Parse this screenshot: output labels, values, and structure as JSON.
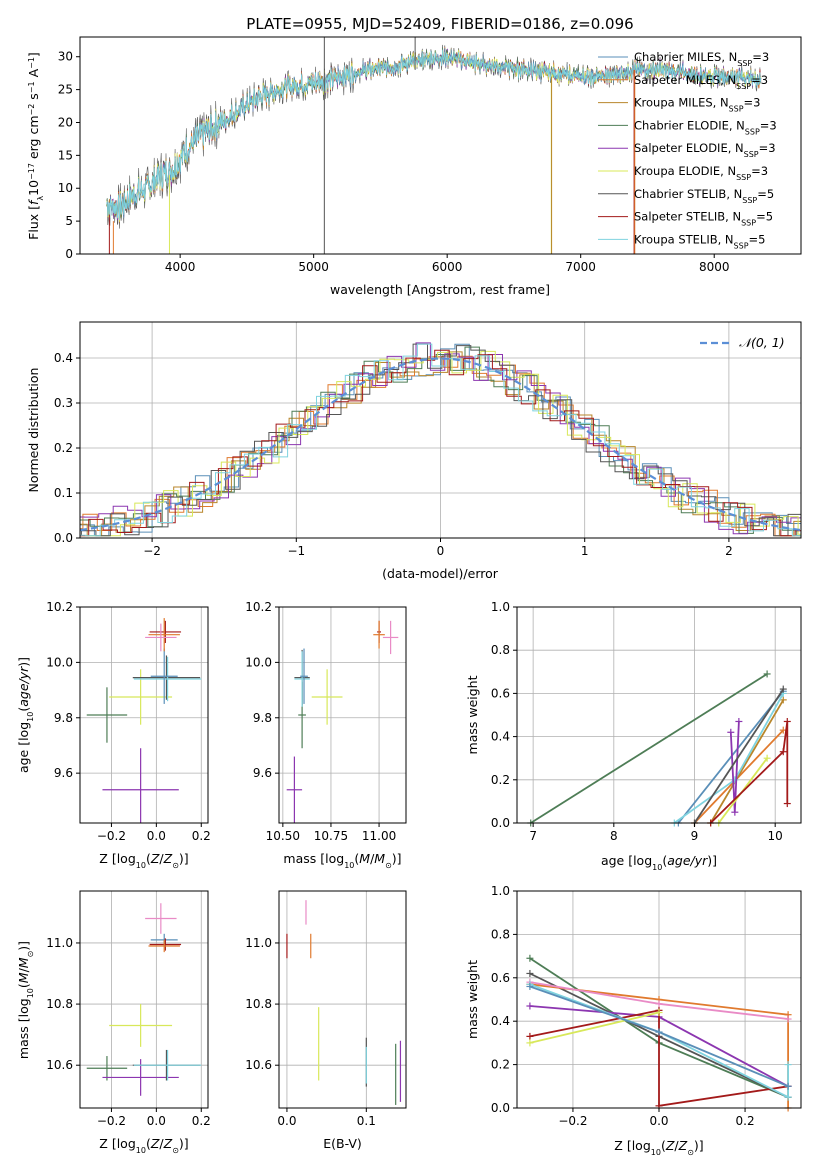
{
  "colors": {
    "Chabrier MILES": "#5a8fb8",
    "Salpeter MILES": "#e07a2e",
    "Kroupa MILES": "#b8862b",
    "Chabrier ELODIE": "#4e7d56",
    "Salpeter ELODIE": "#8c36b0",
    "Kroupa ELODIE": "#d8e85a",
    "Chabrier STELIB": "#555555",
    "Salpeter STELIB": "#a31a1a",
    "Kroupa STELIB": "#7fd3df",
    "gaussian": "#5b8fd6",
    "pink": "#e98bc6"
  },
  "chart_data": [
    {
      "id": "spectrum",
      "type": "line",
      "title": "PLATE=0955, MJD=52409, FIBERID=0186, z=0.096",
      "xlabel": "wavelength [Angstrom, rest frame]",
      "ylabel": "Flux [f_λ10^-17 erg cm^-2 s^-1 A^-1]",
      "xlim": [
        3250,
        8650
      ],
      "ylim": [
        0,
        33
      ],
      "xticks": [
        4000,
        5000,
        6000,
        7000,
        8000
      ],
      "yticks": [
        0,
        5,
        10,
        15,
        20,
        25,
        30
      ],
      "legend_position": "top-right",
      "series": [
        {
          "name": "Chabrier MILES",
          "sub": "SSP",
          "n": 3
        },
        {
          "name": "Salpeter MILES",
          "sub": "SSP",
          "n": 3
        },
        {
          "name": "Kroupa MILES",
          "sub": "SSP",
          "n": 3
        },
        {
          "name": "Chabrier ELODIE",
          "sub": "SSP",
          "n": 3
        },
        {
          "name": "Salpeter ELODIE",
          "sub": "SSP",
          "n": 3
        },
        {
          "name": "Kroupa ELODIE",
          "sub": "SSP",
          "n": 3
        },
        {
          "name": "Chabrier STELIB",
          "sub": "SSP",
          "n": 5
        },
        {
          "name": "Salpeter STELIB",
          "sub": "SSP",
          "n": 5
        },
        {
          "name": "Kroupa STELIB",
          "sub": "SSP",
          "n": 5
        }
      ],
      "continuum": [
        [
          3450,
          7.5
        ],
        [
          3550,
          7
        ],
        [
          3650,
          9
        ],
        [
          3750,
          10
        ],
        [
          3850,
          12
        ],
        [
          3950,
          13
        ],
        [
          4050,
          16
        ],
        [
          4150,
          18
        ],
        [
          4300,
          20
        ],
        [
          4450,
          22
        ],
        [
          4600,
          24
        ],
        [
          4800,
          25.5
        ],
        [
          5000,
          26
        ],
        [
          5100,
          26.5
        ],
        [
          5200,
          27
        ],
        [
          5300,
          27.5
        ],
        [
          5400,
          28
        ],
        [
          5600,
          28.5
        ],
        [
          5800,
          29.5
        ],
        [
          6000,
          30
        ],
        [
          6200,
          29
        ],
        [
          6400,
          28.5
        ],
        [
          6600,
          28
        ],
        [
          6800,
          27.5
        ],
        [
          7000,
          27
        ],
        [
          7200,
          27
        ],
        [
          7400,
          28
        ],
        [
          7600,
          28
        ],
        [
          7800,
          27.5
        ],
        [
          8000,
          27
        ],
        [
          8200,
          27
        ],
        [
          8350,
          26.5
        ]
      ],
      "spikes": [
        {
          "x": 5080,
          "y0": 0,
          "y1": 33,
          "color": "#555555"
        },
        {
          "x": 5760,
          "y0": 28,
          "y1": 33,
          "color": "#555555"
        },
        {
          "x": 6780,
          "y0": 0,
          "y1": 27,
          "color": "#d8e85a"
        },
        {
          "x": 6782,
          "y0": 0,
          "y1": 27,
          "color": "#b8862b"
        },
        {
          "x": 7400,
          "y0": 0,
          "y1": 28,
          "color": "#a31a1a"
        },
        {
          "x": 7405,
          "y0": 0,
          "y1": 28,
          "color": "#e07a2e"
        },
        {
          "x": 3920,
          "y0": 0,
          "y1": 12,
          "color": "#d8e85a"
        },
        {
          "x": 3500,
          "y0": 0,
          "y1": 5,
          "color": "#e07a2e"
        },
        {
          "x": 3470,
          "y0": 0,
          "y1": 6,
          "color": "#a31a1a"
        }
      ]
    },
    {
      "id": "residuals",
      "type": "histogram",
      "xlabel": "(data-model)/error",
      "ylabel": "Normed distribution",
      "xlim": [
        -2.5,
        2.5
      ],
      "ylim": [
        0,
        0.48
      ],
      "xticks": [
        -2,
        -1,
        0,
        1,
        2
      ],
      "xtick_labels": [
        "−2",
        "−1",
        "0",
        "1",
        "2"
      ],
      "yticks": [
        0,
        0.1,
        0.2,
        0.3,
        0.4
      ],
      "ytick_labels": [
        "0.0",
        "0.1",
        "0.2",
        "0.3",
        "0.4"
      ],
      "legend": "𝒩(0, 1)",
      "legend_position": "top-right",
      "bin_width": 0.1,
      "series": [
        {
          "name": "Chabrier MILES",
          "offset": 0.0
        },
        {
          "name": "Salpeter MILES",
          "offset": 0.02
        },
        {
          "name": "Kroupa MILES",
          "offset": 0.05
        },
        {
          "name": "Chabrier ELODIE",
          "offset": 0.07
        },
        {
          "name": "Salpeter ELODIE",
          "offset": 0.03
        },
        {
          "name": "Kroupa ELODIE",
          "offset": 0.08
        },
        {
          "name": "Chabrier STELIB",
          "offset": 0.01
        },
        {
          "name": "Salpeter STELIB",
          "offset": 0.06
        },
        {
          "name": "Kroupa STELIB",
          "offset": 0.04
        }
      ]
    },
    {
      "id": "age-vs-Z",
      "type": "errorbar",
      "xlabel": "Z [log10(Z/Z⊙)]",
      "ylabel": "age [log10(age/yr)]",
      "xlim": [
        -0.34,
        0.23
      ],
      "ylim": [
        9.42,
        10.2
      ],
      "xticks": [
        -0.2,
        0.0,
        0.2
      ],
      "xtick_labels": [
        "−0.2",
        "0.0",
        "0.2"
      ],
      "yticks": [
        9.6,
        9.8,
        10.0,
        10.2
      ],
      "yticks_labels": [
        "9.6",
        "9.8",
        "10.0",
        "10.2"
      ],
      "points": [
        {
          "c": "Chabrier ELODIE",
          "x": -0.22,
          "xe": 0.09,
          "y": 9.81,
          "ye": 0.1
        },
        {
          "c": "Salpeter ELODIE",
          "x": -0.07,
          "xe": 0.17,
          "y": 9.54,
          "ye": 0.15
        },
        {
          "c": "Kroupa ELODIE",
          "x": -0.07,
          "xe": 0.14,
          "y": 9.875,
          "ye": 0.1
        },
        {
          "c": "Chabrier STELIB",
          "x": 0.045,
          "xe": 0.15,
          "y": 9.945,
          "ye": 0.08
        },
        {
          "c": "Kroupa STELIB",
          "x": 0.05,
          "xe": 0.15,
          "y": 9.94,
          "ye": 0.08
        },
        {
          "c": "Chabrier MILES",
          "x": 0.035,
          "xe": 0.06,
          "y": 9.95,
          "ye": 0.1
        },
        {
          "c": "Salpeter STELIB",
          "x": 0.04,
          "xe": 0.07,
          "y": 10.11,
          "ye": 0.04
        },
        {
          "c": "Salpeter MILES",
          "x": 0.035,
          "xe": 0.07,
          "y": 10.1,
          "ye": 0.06
        },
        {
          "c": "pink",
          "x": 0.02,
          "xe": 0.07,
          "y": 10.09,
          "ye": 0.05
        }
      ]
    },
    {
      "id": "age-vs-mass",
      "type": "errorbar",
      "xlabel": "mass [log10(M/M⊙)]",
      "ylabel": "",
      "xlim": [
        10.48,
        11.14
      ],
      "ylim": [
        9.42,
        10.2
      ],
      "xticks": [
        10.5,
        10.75,
        11.0
      ],
      "xtick_labels": [
        "10.50",
        "10.75",
        "11.00"
      ],
      "yticks": [
        9.6,
        9.8,
        10.0,
        10.2
      ],
      "yticks_labels": [
        "9.6",
        "9.8",
        "10.0",
        "10.2"
      ],
      "points": [
        {
          "c": "Chabrier ELODIE",
          "x": 10.6,
          "xe": 0.02,
          "y": 9.81,
          "ye": 0.12
        },
        {
          "c": "Salpeter ELODIE",
          "x": 10.56,
          "xe": 0.04,
          "y": 9.54,
          "ye": 0.12
        },
        {
          "c": "Kroupa ELODIE",
          "x": 10.73,
          "xe": 0.08,
          "y": 9.875,
          "ye": 0.1
        },
        {
          "c": "Chabrier STELIB",
          "x": 10.6,
          "xe": 0.04,
          "y": 9.945,
          "ye": 0.1
        },
        {
          "c": "Kroupa STELIB",
          "x": 10.6,
          "xe": 0.04,
          "y": 9.94,
          "ye": 0.1
        },
        {
          "c": "Chabrier MILES",
          "x": 10.61,
          "xe": 0.02,
          "y": 9.95,
          "ye": 0.1
        },
        {
          "c": "Salpeter STELIB",
          "x": 11.0,
          "xe": 0.01,
          "y": 10.11,
          "ye": 0.04
        },
        {
          "c": "Salpeter MILES",
          "x": 11.0,
          "xe": 0.03,
          "y": 10.1,
          "ye": 0.05
        },
        {
          "c": "pink",
          "x": 11.06,
          "xe": 0.04,
          "y": 10.09,
          "ye": 0.06
        }
      ]
    },
    {
      "id": "weight-vs-age",
      "type": "line",
      "xlabel": "age [log10(age/yr)]",
      "ylabel": "mass weight",
      "xlim": [
        6.8,
        10.32
      ],
      "ylim": [
        0,
        1.0
      ],
      "xticks": [
        7,
        8,
        9,
        10
      ],
      "xtick_labels": [
        "7",
        "8",
        "9",
        "10"
      ],
      "yticks": [
        0,
        0.2,
        0.4,
        0.6,
        0.8,
        1.0
      ],
      "yticks_labels": [
        "0.0",
        "0.2",
        "0.4",
        "0.6",
        "0.8",
        "1.0"
      ],
      "series": [
        {
          "c": "Chabrier ELODIE",
          "pts": [
            [
              6.97,
              0.0
            ],
            [
              9.9,
              0.69
            ]
          ]
        },
        {
          "c": "Chabrier MILES",
          "pts": [
            [
              8.8,
              0.0
            ],
            [
              10.1,
              0.61
            ]
          ]
        },
        {
          "c": "Salpeter MILES",
          "pts": [
            [
              9.0,
              0.0
            ],
            [
              10.1,
              0.43
            ]
          ]
        },
        {
          "c": "Kroupa MILES",
          "pts": [
            [
              9.2,
              0.0
            ],
            [
              10.1,
              0.57
            ]
          ]
        },
        {
          "c": "Kroupa STELIB",
          "pts": [
            [
              8.75,
              0.0
            ],
            [
              9.5,
              0.2
            ],
            [
              10.1,
              0.6
            ]
          ]
        },
        {
          "c": "Salpeter ELODIE",
          "pts": [
            [
              9.45,
              0.42
            ],
            [
              9.5,
              0.05
            ],
            [
              9.55,
              0.47
            ]
          ]
        },
        {
          "c": "Kroupa ELODIE",
          "pts": [
            [
              9.3,
              0.0
            ],
            [
              9.9,
              0.3
            ]
          ]
        },
        {
          "c": "Salpeter STELIB",
          "pts": [
            [
              9.2,
              0.0
            ],
            [
              10.1,
              0.33
            ],
            [
              10.15,
              0.47
            ],
            [
              10.15,
              0.09
            ]
          ]
        },
        {
          "c": "Chabrier STELIB",
          "pts": [
            [
              9.0,
              0.0
            ],
            [
              10.1,
              0.62
            ]
          ]
        }
      ]
    },
    {
      "id": "mass-vs-Z",
      "type": "errorbar",
      "xlabel": "Z [log10(Z/Z⊙)]",
      "ylabel": "mass [log10(M/M⊙)]",
      "xlim": [
        -0.34,
        0.23
      ],
      "ylim": [
        10.46,
        11.17
      ],
      "xticks": [
        -0.2,
        0.0,
        0.2
      ],
      "xtick_labels": [
        "−0.2",
        "0.0",
        "0.2"
      ],
      "yticks": [
        10.6,
        10.8,
        11.0
      ],
      "yticks_labels": [
        "10.6",
        "10.8",
        "11.0"
      ],
      "points": [
        {
          "c": "Chabrier ELODIE",
          "x": -0.22,
          "xe": 0.09,
          "y": 10.59,
          "ye": 0.04
        },
        {
          "c": "Salpeter ELODIE",
          "x": -0.07,
          "xe": 0.17,
          "y": 10.56,
          "ye": 0.06
        },
        {
          "c": "Kroupa ELODIE",
          "x": -0.07,
          "xe": 0.14,
          "y": 10.73,
          "ye": 0.07
        },
        {
          "c": "Chabrier STELIB",
          "x": 0.045,
          "xe": 0.15,
          "y": 10.6,
          "ye": 0.05
        },
        {
          "c": "Kroupa STELIB",
          "x": 0.05,
          "xe": 0.15,
          "y": 10.6,
          "ye": 0.05
        },
        {
          "c": "Chabrier MILES",
          "x": 0.035,
          "xe": 0.06,
          "y": 11.01,
          "ye": 0.02
        },
        {
          "c": "Salpeter STELIB",
          "x": 0.04,
          "xe": 0.07,
          "y": 10.995,
          "ye": 0.02
        },
        {
          "c": "Salpeter MILES",
          "x": 0.035,
          "xe": 0.07,
          "y": 10.99,
          "ye": 0.02
        },
        {
          "c": "pink",
          "x": 0.02,
          "xe": 0.07,
          "y": 11.08,
          "ye": 0.05
        }
      ]
    },
    {
      "id": "mass-vs-EBV",
      "type": "errorbar",
      "xlabel": "E(B-V)",
      "ylabel": "",
      "xlim": [
        -0.01,
        0.15
      ],
      "ylim": [
        10.46,
        11.17
      ],
      "xticks": [
        0.0,
        0.1
      ],
      "xtick_labels": [
        "0.0",
        "0.1"
      ],
      "yticks": [
        10.6,
        10.8,
        11.0
      ],
      "yticks_labels": [
        "10.6",
        "10.8",
        "11.0"
      ],
      "points": [
        {
          "c": "Salpeter STELIB",
          "x": 0.0,
          "xe": 0.0,
          "y": 10.99,
          "ye": 0.04
        },
        {
          "c": "pink",
          "x": 0.024,
          "xe": 0.0,
          "y": 11.1,
          "ye": 0.04
        },
        {
          "c": "Salpeter MILES",
          "x": 0.03,
          "xe": 0.0,
          "y": 10.99,
          "ye": 0.04
        },
        {
          "c": "Kroupa ELODIE",
          "x": 0.04,
          "xe": 0.0,
          "y": 10.67,
          "ye": 0.12
        },
        {
          "c": "Chabrier STELIB",
          "x": 0.1,
          "xe": 0.0,
          "y": 10.61,
          "ye": 0.08
        },
        {
          "c": "Kroupa STELIB",
          "x": 0.1,
          "xe": 0.0,
          "y": 10.6,
          "ye": 0.06
        },
        {
          "c": "Chabrier ELODIE",
          "x": 0.137,
          "xe": 0.0,
          "y": 10.57,
          "ye": 0.1
        },
        {
          "c": "Salpeter ELODIE",
          "x": 0.143,
          "xe": 0.0,
          "y": 10.58,
          "ye": 0.1
        }
      ]
    },
    {
      "id": "weight-vs-Z",
      "type": "line",
      "xlabel": "Z [log10(Z/Z⊙)]",
      "ylabel": "mass weight",
      "xlim": [
        -0.33,
        0.33
      ],
      "ylim": [
        0,
        1.0
      ],
      "xticks": [
        -0.2,
        0.0,
        0.2
      ],
      "xtick_labels": [
        "−0.2",
        "0.0",
        "0.2"
      ],
      "yticks": [
        0,
        0.2,
        0.4,
        0.6,
        0.8,
        1.0
      ],
      "yticks_labels": [
        "0.0",
        "0.2",
        "0.4",
        "0.6",
        "0.8",
        "1.0"
      ],
      "series": [
        {
          "c": "Chabrier ELODIE",
          "pts": [
            [
              -0.3,
              0.69
            ],
            [
              0.0,
              0.3
            ],
            [
              0.3,
              0.05
            ]
          ]
        },
        {
          "c": "Chabrier STELIB",
          "pts": [
            [
              -0.3,
              0.62
            ],
            [
              0.0,
              0.33
            ],
            [
              0.3,
              0.05
            ]
          ]
        },
        {
          "c": "Salpeter MILES",
          "pts": [
            [
              -0.3,
              0.57
            ],
            [
              0.0,
              0.5
            ],
            [
              0.3,
              0.43
            ],
            [
              0.3,
              0.0
            ]
          ]
        },
        {
          "c": "pink",
          "pts": [
            [
              -0.3,
              0.58
            ],
            [
              0.0,
              0.48
            ],
            [
              0.3,
              0.41
            ]
          ]
        },
        {
          "c": "Salpeter ELODIE",
          "pts": [
            [
              -0.3,
              0.47
            ],
            [
              0.0,
              0.42
            ],
            [
              0.3,
              0.1
            ]
          ]
        },
        {
          "c": "Salpeter STELIB",
          "pts": [
            [
              -0.3,
              0.33
            ],
            [
              0.0,
              0.45
            ],
            [
              0.0,
              0.01
            ],
            [
              0.3,
              0.1
            ]
          ]
        },
        {
          "c": "Kroupa ELODIE",
          "pts": [
            [
              -0.3,
              0.3
            ],
            [
              0.0,
              0.44
            ]
          ]
        },
        {
          "c": "Kroupa STELIB",
          "pts": [
            [
              -0.3,
              0.57
            ],
            [
              0.0,
              0.35
            ],
            [
              0.3,
              0.05
            ],
            [
              0.3,
              0.2
            ]
          ]
        },
        {
          "c": "Chabrier MILES",
          "pts": [
            [
              -0.3,
              0.56
            ],
            [
              0.0,
              0.35
            ],
            [
              0.3,
              0.1
            ]
          ]
        }
      ]
    }
  ]
}
